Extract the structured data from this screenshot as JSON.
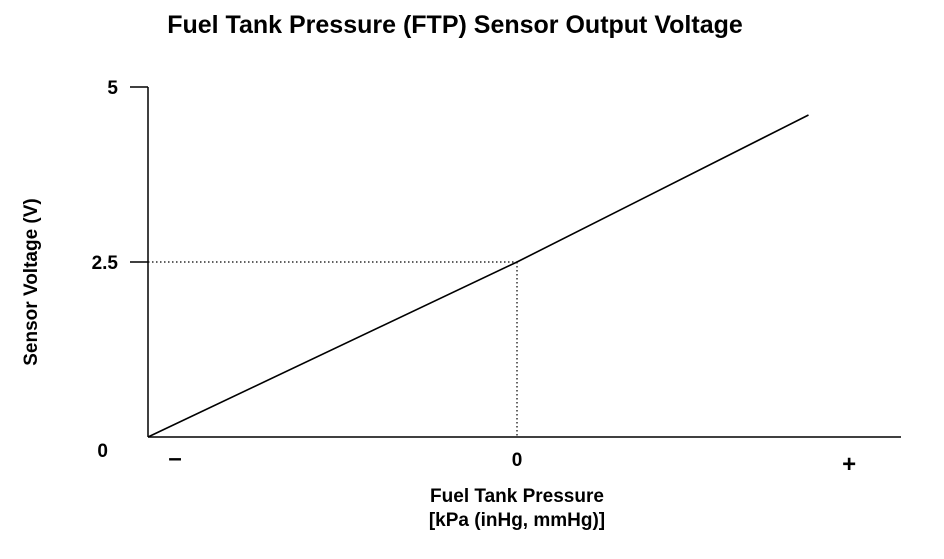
{
  "chart_data": {
    "type": "line",
    "title": "Fuel Tank Pressure (FTP) Sensor Output Voltage",
    "xlabel": "Fuel Tank Pressure",
    "xlabel_units": "[kPa (inHg, mmHg)]",
    "ylabel": "Sensor Voltage (V)",
    "x_ticks": [
      {
        "value": -1,
        "label": "–"
      },
      {
        "value": 0,
        "label": "0"
      },
      {
        "value": 0.9,
        "label": "+"
      }
    ],
    "y_ticks": [
      {
        "value": 0,
        "label": "0"
      },
      {
        "value": 2.5,
        "label": "2.5"
      },
      {
        "value": 5,
        "label": "5"
      }
    ],
    "xlim": [
      -1,
      1.05
    ],
    "ylim": [
      0,
      5
    ],
    "series": [
      {
        "x": [
          -1,
          0,
          0.79
        ],
        "y": [
          0,
          2.5,
          4.6
        ]
      }
    ],
    "reference_point": {
      "x": 0,
      "y": 2.5
    },
    "grid": false,
    "legend": "none",
    "colors": {
      "line": "#000000",
      "axis": "#000000",
      "reference": "#000000"
    }
  }
}
